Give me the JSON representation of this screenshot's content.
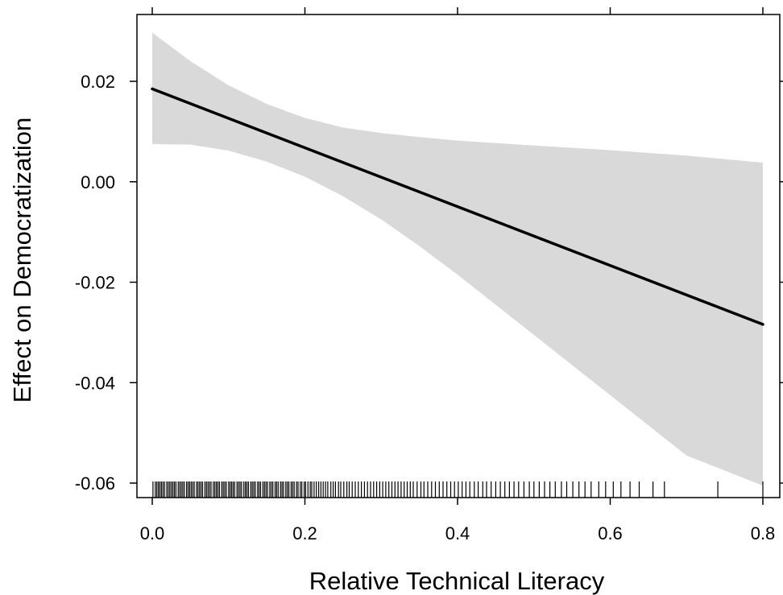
{
  "chart_data": {
    "type": "line",
    "title": "",
    "xlabel": "Relative Technical Literacy",
    "ylabel": "Effect on Democratization",
    "xlim": [
      0,
      0.8
    ],
    "ylim": [
      -0.062,
      0.0315
    ],
    "x_ticks": [
      0.0,
      0.2,
      0.4,
      0.6,
      0.8
    ],
    "x_tick_labels": [
      "0.0",
      "0.2",
      "0.4",
      "0.6",
      "0.8"
    ],
    "y_ticks": [
      0.02,
      0.0,
      -0.02,
      -0.04,
      -0.06
    ],
    "y_tick_labels": [
      "0.02",
      "0.00",
      "-0.02",
      "-0.04",
      "-0.06"
    ],
    "grid": false,
    "series": [
      {
        "kind": "line",
        "color": "#000000",
        "x": [
          0.0,
          0.8
        ],
        "y": [
          0.0185,
          -0.0284
        ]
      }
    ],
    "confidence_band": {
      "color": "#d9d9d9",
      "x": [
        0.0,
        0.05,
        0.1,
        0.15,
        0.2,
        0.25,
        0.3,
        0.35,
        0.4,
        0.5,
        0.6,
        0.7,
        0.8
      ],
      "upper": [
        0.0297,
        0.024,
        0.0192,
        0.0155,
        0.0127,
        0.0108,
        0.0097,
        0.0089,
        0.0082,
        0.0072,
        0.0063,
        0.0052,
        0.0038
      ],
      "lower": [
        0.0075,
        0.0074,
        0.0062,
        0.004,
        0.001,
        -0.0029,
        -0.0075,
        -0.0128,
        -0.0185,
        -0.0305,
        -0.0425,
        -0.0545,
        -0.0605
      ]
    },
    "rug": {
      "y": -0.06,
      "x": [
        0.001,
        0.004,
        0.006,
        0.008,
        0.01,
        0.012,
        0.014,
        0.016,
        0.019,
        0.021,
        0.023,
        0.025,
        0.027,
        0.029,
        0.031,
        0.034,
        0.036,
        0.038,
        0.04,
        0.042,
        0.045,
        0.047,
        0.049,
        0.051,
        0.053,
        0.055,
        0.058,
        0.06,
        0.062,
        0.064,
        0.066,
        0.069,
        0.071,
        0.073,
        0.075,
        0.077,
        0.08,
        0.082,
        0.084,
        0.086,
        0.088,
        0.091,
        0.093,
        0.095,
        0.097,
        0.1,
        0.102,
        0.104,
        0.106,
        0.108,
        0.111,
        0.113,
        0.115,
        0.117,
        0.12,
        0.122,
        0.124,
        0.126,
        0.129,
        0.131,
        0.133,
        0.135,
        0.138,
        0.14,
        0.142,
        0.145,
        0.147,
        0.149,
        0.151,
        0.154,
        0.156,
        0.158,
        0.161,
        0.163,
        0.165,
        0.168,
        0.17,
        0.172,
        0.175,
        0.177,
        0.179,
        0.182,
        0.184,
        0.186,
        0.189,
        0.191,
        0.194,
        0.196,
        0.199,
        0.201,
        0.204,
        0.207,
        0.209,
        0.212,
        0.215,
        0.218,
        0.221,
        0.224,
        0.227,
        0.23,
        0.234,
        0.237,
        0.24,
        0.244,
        0.247,
        0.251,
        0.255,
        0.258,
        0.262,
        0.266,
        0.27,
        0.274,
        0.278,
        0.282,
        0.286,
        0.29,
        0.294,
        0.298,
        0.302,
        0.306,
        0.31,
        0.314,
        0.318,
        0.322,
        0.326,
        0.33,
        0.334,
        0.338,
        0.342,
        0.347,
        0.352,
        0.356,
        0.361,
        0.366,
        0.371,
        0.376,
        0.381,
        0.386,
        0.391,
        0.396,
        0.401,
        0.406,
        0.411,
        0.416,
        0.422,
        0.427,
        0.433,
        0.438,
        0.444,
        0.45,
        0.456,
        0.462,
        0.468,
        0.474,
        0.48,
        0.487,
        0.494,
        0.5,
        0.507,
        0.514,
        0.521,
        0.528,
        0.536,
        0.543,
        0.551,
        0.559,
        0.567,
        0.575,
        0.585,
        0.594,
        0.604,
        0.614,
        0.626,
        0.638,
        0.656,
        0.671,
        0.741,
        0.8
      ]
    }
  }
}
